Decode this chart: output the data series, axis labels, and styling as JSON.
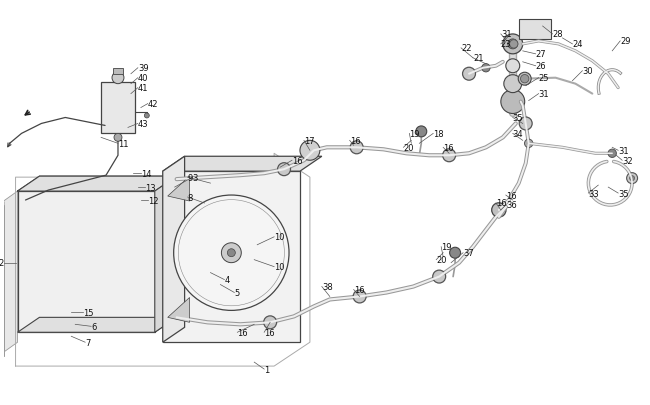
{
  "bg_color": "#ffffff",
  "lc": "#444444",
  "lc_gray": "#888888",
  "fig_width": 6.5,
  "fig_height": 4.06,
  "xlim": [
    0,
    6.5
  ],
  "ylim": [
    0,
    4.06
  ],
  "hose_lw": 1.5,
  "thin_lw": 0.7,
  "label_fs": 6.0,
  "label_color": "#111111"
}
